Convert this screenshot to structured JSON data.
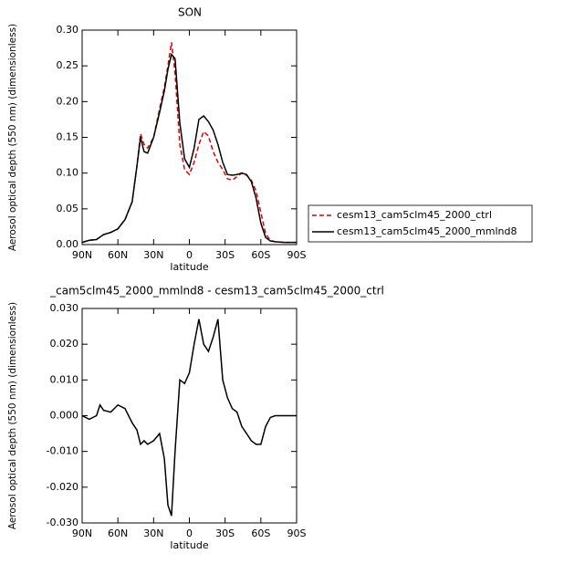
{
  "chart_data": [
    {
      "type": "line",
      "title": "SON",
      "xlabel": "latitude",
      "ylabel": "Aerosol optical depth (550 nm) (dimensionless)",
      "x": [
        90,
        84,
        78,
        72,
        66,
        60,
        54,
        48,
        44,
        41,
        38,
        35,
        30,
        25,
        21,
        18,
        15,
        12,
        8,
        4,
        0,
        -4,
        -8,
        -12,
        -16,
        -20,
        -24,
        -28,
        -32,
        -36,
        -40,
        -44,
        -48,
        -52,
        -56,
        -60,
        -64,
        -68,
        -72,
        -80,
        -90
      ],
      "series": [
        {
          "name": "cesm13_cam5clm45_2000_ctrl",
          "color": "#e00000",
          "dash": true,
          "values": [
            0.003,
            0.006,
            0.007,
            0.014,
            0.017,
            0.022,
            0.035,
            0.06,
            0.11,
            0.155,
            0.14,
            0.135,
            0.15,
            0.19,
            0.22,
            0.25,
            0.283,
            0.24,
            0.14,
            0.105,
            0.098,
            0.115,
            0.14,
            0.158,
            0.152,
            0.13,
            0.115,
            0.105,
            0.092,
            0.09,
            0.095,
            0.1,
            0.097,
            0.09,
            0.075,
            0.045,
            0.015,
            0.006,
            0.004,
            0.003,
            0.003
          ]
        },
        {
          "name": "cesm13_cam5clm45_2000_mmlnd8",
          "color": "#000000",
          "dash": false,
          "values": [
            0.003,
            0.006,
            0.007,
            0.014,
            0.017,
            0.022,
            0.035,
            0.06,
            0.11,
            0.15,
            0.13,
            0.128,
            0.15,
            0.185,
            0.215,
            0.245,
            0.266,
            0.26,
            0.17,
            0.12,
            0.108,
            0.135,
            0.175,
            0.18,
            0.172,
            0.16,
            0.14,
            0.115,
            0.098,
            0.097,
            0.098,
            0.1,
            0.098,
            0.088,
            0.065,
            0.03,
            0.01,
            0.005,
            0.004,
            0.003,
            0.003
          ]
        }
      ],
      "xlim": [
        90,
        -90
      ],
      "xticks": [
        {
          "value": 90,
          "label": "90N"
        },
        {
          "value": 60,
          "label": "60N"
        },
        {
          "value": 30,
          "label": "30N"
        },
        0,
        {
          "value": -30,
          "label": "30S"
        },
        {
          "value": -60,
          "label": "60S"
        },
        {
          "value": -90,
          "label": "90S"
        }
      ],
      "ylim": [
        0,
        0.3
      ],
      "yticks": [
        {
          "value": 0,
          "label": "0.00"
        },
        {
          "value": 0.05,
          "label": "0.05"
        },
        {
          "value": 0.1,
          "label": "0.10"
        },
        {
          "value": 0.15,
          "label": "0.15"
        },
        {
          "value": 0.2,
          "label": "0.20"
        },
        {
          "value": 0.25,
          "label": "0.25"
        },
        {
          "value": 0.3,
          "label": "0.30"
        }
      ],
      "legend": "right"
    },
    {
      "type": "line",
      "title": "_cam5clm45_2000_mmlnd8 - cesm13_cam5clm45_2000_ctrl",
      "xlabel": "latitude",
      "ylabel": "Aerosol optical depth (550 nm) (dimensionless)",
      "x": [
        90,
        84,
        78,
        75,
        72,
        66,
        60,
        54,
        48,
        44,
        41,
        38,
        35,
        30,
        25,
        21,
        18,
        15,
        12,
        8,
        4,
        0,
        -4,
        -8,
        -12,
        -16,
        -20,
        -24,
        -28,
        -32,
        -36,
        -40,
        -44,
        -48,
        -52,
        -56,
        -60,
        -64,
        -68,
        -72,
        -80,
        -90
      ],
      "series": [
        {
          "color": "#000000",
          "dash": false,
          "values": [
            0,
            -0.001,
            0,
            0.003,
            0.0015,
            0.001,
            0.003,
            0.002,
            -0.002,
            -0.004,
            -0.008,
            -0.007,
            -0.008,
            -0.007,
            -0.005,
            -0.012,
            -0.025,
            -0.028,
            -0.01,
            0.01,
            0.009,
            0.012,
            0.02,
            0.027,
            0.02,
            0.018,
            0.022,
            0.027,
            0.01,
            0.005,
            0.002,
            0.001,
            -0.003,
            -0.005,
            -0.007,
            -0.008,
            -0.008,
            -0.003,
            -0.0005,
            0,
            0,
            0
          ]
        }
      ],
      "xlim": [
        90,
        -90
      ],
      "xticks": [
        {
          "value": 90,
          "label": "90N"
        },
        {
          "value": 60,
          "label": "60N"
        },
        {
          "value": 30,
          "label": "30N"
        },
        0,
        {
          "value": -30,
          "label": "30S"
        },
        {
          "value": -60,
          "label": "60S"
        },
        {
          "value": -90,
          "label": "90S"
        }
      ],
      "ylim": [
        -0.03,
        0.03
      ],
      "yticks": [
        {
          "value": -0.03,
          "label": "-0.030"
        },
        {
          "value": -0.02,
          "label": "-0.020"
        },
        {
          "value": -0.01,
          "label": "-0.010"
        },
        {
          "value": 0,
          "label": "0.000"
        },
        {
          "value": 0.01,
          "label": "0.010"
        },
        {
          "value": 0.02,
          "label": "0.020"
        },
        {
          "value": 0.03,
          "label": "0.030"
        }
      ]
    }
  ]
}
